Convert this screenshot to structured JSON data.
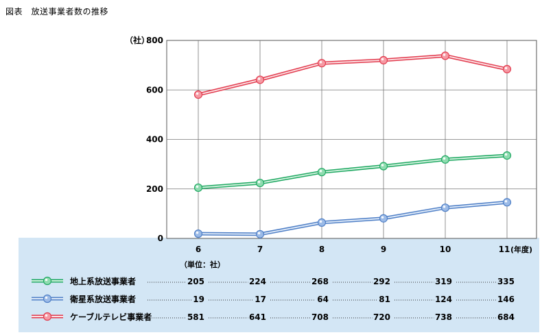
{
  "figure": {
    "title": "図表　放送事業者数の推移"
  },
  "chart_data": {
    "type": "line",
    "categories": [
      "6",
      "7",
      "8",
      "9",
      "10",
      "11"
    ],
    "x_suffix": "(年度)",
    "y_unit_label": "（社）",
    "ylim": [
      0,
      800
    ],
    "yticks": [
      0,
      200,
      400,
      600,
      800
    ],
    "grid": true,
    "series": [
      {
        "name": "地上系放送事業者",
        "values": [
          205,
          224,
          268,
          292,
          319,
          335
        ],
        "color": "#1fa862",
        "light": "#d2f2de",
        "dot": "#8fdcb0"
      },
      {
        "name": "衛星系放送事業者",
        "values": [
          19,
          17,
          64,
          81,
          124,
          146
        ],
        "color": "#4f7fc6",
        "light": "#dde9f8",
        "dot": "#9cbbe7"
      },
      {
        "name": "ケーブルテレビ事業者",
        "values": [
          581,
          641,
          708,
          720,
          738,
          684
        ],
        "color": "#e23a4d",
        "light": "#fbdfe2",
        "dot": "#f59aa4"
      }
    ],
    "table_unit": "（単位：社）"
  }
}
